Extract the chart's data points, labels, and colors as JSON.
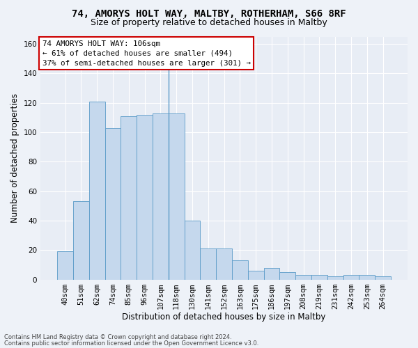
{
  "title1": "74, AMORYS HOLT WAY, MALTBY, ROTHERHAM, S66 8RF",
  "title2": "Size of property relative to detached houses in Maltby",
  "xlabel": "Distribution of detached houses by size in Maltby",
  "ylabel": "Number of detached properties",
  "categories": [
    "40sqm",
    "51sqm",
    "62sqm",
    "74sqm",
    "85sqm",
    "96sqm",
    "107sqm",
    "118sqm",
    "130sqm",
    "141sqm",
    "152sqm",
    "163sqm",
    "175sqm",
    "186sqm",
    "197sqm",
    "208sqm",
    "219sqm",
    "231sqm",
    "242sqm",
    "253sqm",
    "264sqm"
  ],
  "values": [
    19,
    53,
    121,
    103,
    111,
    112,
    113,
    113,
    40,
    21,
    21,
    13,
    6,
    8,
    5,
    3,
    3,
    2,
    3,
    3,
    2
  ],
  "bar_color": "#c5d8ed",
  "bar_edge_color": "#5a9bc8",
  "annotation_title": "74 AMORYS HOLT WAY: 106sqm",
  "annotation_line1": "← 61% of detached houses are smaller (494)",
  "annotation_line2": "37% of semi-detached houses are larger (301) →",
  "annotation_box_facecolor": "#ffffff",
  "annotation_box_edgecolor": "#cc0000",
  "vline_index": 6.5,
  "ylim": [
    0,
    165
  ],
  "yticks": [
    0,
    20,
    40,
    60,
    80,
    100,
    120,
    140,
    160
  ],
  "footnote1": "Contains HM Land Registry data © Crown copyright and database right 2024.",
  "footnote2": "Contains public sector information licensed under the Open Government Licence v3.0.",
  "bg_color": "#eef2f8",
  "plot_bg_color": "#e8edf5",
  "grid_color": "#ffffff",
  "title1_fontsize": 10,
  "title2_fontsize": 9,
  "axis_label_fontsize": 8.5,
  "tick_fontsize": 7.5,
  "footnote_fontsize": 6.0
}
